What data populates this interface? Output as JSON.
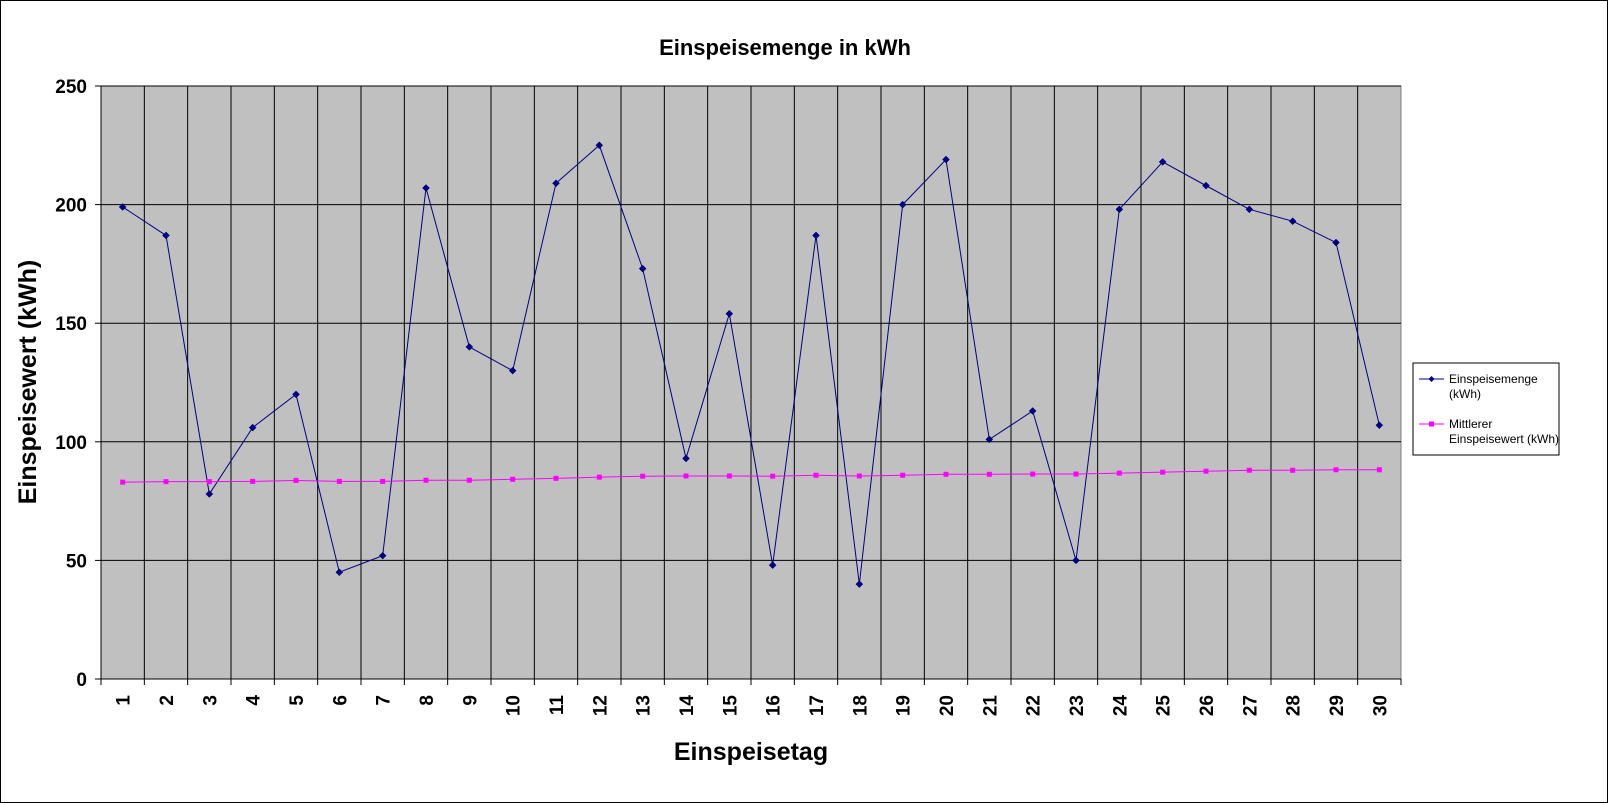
{
  "chart_data": {
    "type": "line",
    "title": "Einspeisemenge in kWh",
    "xlabel": "Einspeisetag",
    "ylabel": "Einspeisewert  (kWh)",
    "ylim": [
      0,
      250
    ],
    "yticks": [
      "0",
      "50",
      "100",
      "150",
      "200",
      "250"
    ],
    "categories": [
      "1",
      "2",
      "3",
      "4",
      "5",
      "6",
      "7",
      "8",
      "9",
      "10",
      "11",
      "12",
      "13",
      "14",
      "15",
      "16",
      "17",
      "18",
      "19",
      "20",
      "21",
      "22",
      "23",
      "24",
      "25",
      "26",
      "27",
      "28",
      "29",
      "30"
    ],
    "grid": true,
    "plot_background": "#C0C0C0",
    "legend_position": "right",
    "series": [
      {
        "name": "Einspeisemenge (kWh)",
        "legend_lines": [
          "Einspeisemenge",
          "(kWh)"
        ],
        "color": "#000080",
        "marker": "diamond",
        "values": [
          199,
          187,
          78,
          106,
          120,
          45,
          52,
          207,
          140,
          130,
          209,
          225,
          173,
          93,
          154,
          48,
          187,
          40,
          200,
          219,
          101,
          113,
          50,
          198,
          218,
          208,
          198,
          193,
          184,
          107
        ]
      },
      {
        "name": "Mittlerer Einspeisewert (kWh)",
        "legend_lines": [
          "Mittlerer",
          "Einspeisewert (kWh)"
        ],
        "color": "#FF00FF",
        "marker": "square",
        "values": [
          83,
          83.2,
          83.2,
          83.3,
          83.7,
          83.3,
          83.3,
          83.8,
          83.8,
          84.2,
          84.6,
          85.1,
          85.5,
          85.6,
          85.6,
          85.5,
          85.9,
          85.6,
          85.9,
          86.3,
          86.3,
          86.4,
          86.4,
          86.8,
          87.2,
          87.6,
          88,
          88,
          88.2,
          88.2
        ]
      }
    ]
  }
}
